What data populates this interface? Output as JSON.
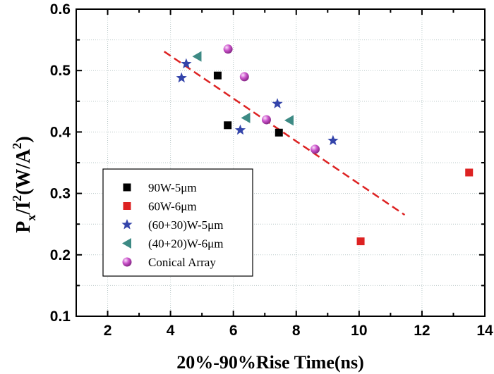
{
  "chart_data": {
    "type": "scatter",
    "xlabel": "20%-90%Rise Time(ns)",
    "ylabel": {
      "base": "P",
      "sub": "x",
      "mid": "/I",
      "sup": "2",
      "unit_open": "(W/A",
      "unit_sup": "2",
      "unit_close": ")"
    },
    "xlim": [
      1,
      14
    ],
    "ylim": [
      0.1,
      0.6
    ],
    "xticks": [
      2,
      4,
      6,
      8,
      10,
      12,
      14
    ],
    "yticks": [
      0.1,
      0.2,
      0.3,
      0.4,
      0.5,
      0.6
    ],
    "ytick_labels": [
      "0.1",
      "0.2",
      "0.3",
      "0.4",
      "0.5",
      "0.6"
    ],
    "grid": true,
    "legend_position": "bottom-left",
    "series": [
      {
        "name": "90W-5μm",
        "marker": "square",
        "color": "#000000",
        "points": [
          [
            5.5,
            0.492
          ],
          [
            5.82,
            0.411
          ],
          [
            7.45,
            0.399
          ]
        ]
      },
      {
        "name": "60W-6μm",
        "marker": "square",
        "color": "#dd2222",
        "points": [
          [
            10.05,
            0.222
          ],
          [
            13.5,
            0.334
          ]
        ]
      },
      {
        "name": "(60+30)W-5μm",
        "marker": "star",
        "color": "#3344aa",
        "points": [
          [
            4.35,
            0.488
          ],
          [
            4.5,
            0.511
          ],
          [
            6.22,
            0.403
          ],
          [
            7.4,
            0.446
          ],
          [
            9.17,
            0.386
          ]
        ]
      },
      {
        "name": "(40+20)W-6μm",
        "marker": "triangle-left",
        "color": "#3d8a84",
        "points": [
          [
            4.85,
            0.523
          ],
          [
            6.4,
            0.423
          ],
          [
            7.78,
            0.419
          ]
        ]
      },
      {
        "name": "Conical Array",
        "marker": "sphere",
        "color": "#bb44bb",
        "points": [
          [
            5.83,
            0.535
          ],
          [
            6.35,
            0.49
          ],
          [
            7.05,
            0.42
          ],
          [
            8.6,
            0.372
          ]
        ]
      }
    ],
    "fit_line": {
      "style": "dashed",
      "color": "#dd2222",
      "x": [
        3.8,
        11.45
      ],
      "y": [
        0.531,
        0.265
      ]
    }
  }
}
